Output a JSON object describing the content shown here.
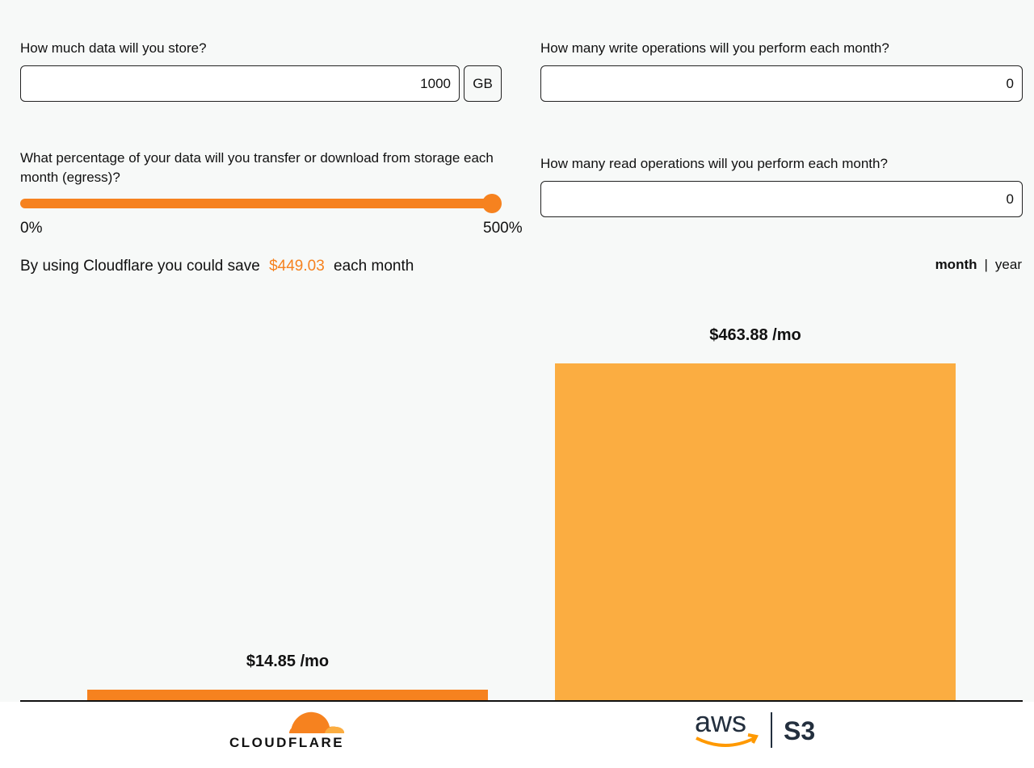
{
  "storage": {
    "question": "How much data will you store?",
    "value": "1000",
    "unit": "GB"
  },
  "egress": {
    "question": "What percentage of your data will you transfer or download from storage each month (egress)?",
    "min_label": "0%",
    "max_label": "500%",
    "value_percent": 500
  },
  "writes": {
    "question": "How many write operations will you perform each month?",
    "value": "0"
  },
  "reads": {
    "question": "How many read operations will you perform each month?",
    "value": "0"
  },
  "savings": {
    "prefix": "By using Cloudflare you could save",
    "amount": "$449.03",
    "suffix": "each month"
  },
  "period_toggle": {
    "month": "month",
    "separator": "|",
    "year": "year",
    "selected": "month"
  },
  "chart_data": {
    "type": "bar",
    "categories": [
      "Cloudflare",
      "AWS S3"
    ],
    "values": [
      14.85,
      463.88
    ],
    "data_labels": [
      "$14.85 /mo",
      "$463.88 /mo"
    ],
    "colors": [
      "#f6821f",
      "#fbad41"
    ]
  },
  "logos": {
    "cloudflare": "CLOUDFLARE",
    "aws": "aws",
    "s3": "S3"
  }
}
